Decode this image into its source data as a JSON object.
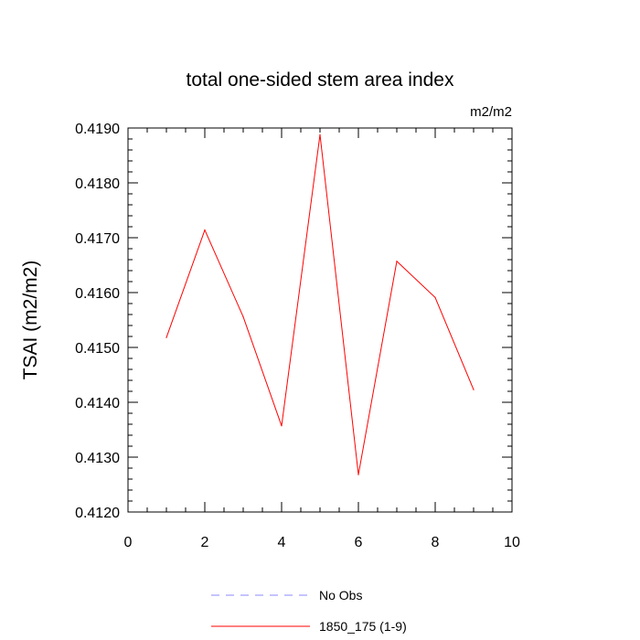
{
  "chart_data": {
    "type": "line",
    "title": "total one-sided stem area index",
    "units": "m2/m2",
    "xlabel": "",
    "ylabel": "TSAI  (m2/m2)",
    "xlim": [
      0,
      10
    ],
    "ylim": [
      0.412,
      0.419
    ],
    "x_ticks": [
      0,
      2,
      4,
      6,
      8,
      10
    ],
    "x_tick_labels": [
      "0",
      "2",
      "4",
      "6",
      "8",
      "10"
    ],
    "y_ticks": [
      0.412,
      0.413,
      0.414,
      0.415,
      0.416,
      0.417,
      0.418,
      0.419
    ],
    "y_tick_labels": [
      "0.4120",
      "0.4130",
      "0.4140",
      "0.4150",
      "0.4160",
      "0.4170",
      "0.4180",
      "0.4190"
    ],
    "grid": false,
    "legend_position": "bottom-center",
    "series": [
      {
        "name": "No Obs",
        "color": "#8888ff",
        "dash": "dashed",
        "x": [],
        "y": []
      },
      {
        "name": "1850_175 (1-9)",
        "color": "#ff0000",
        "dash": "solid",
        "x": [
          1,
          2,
          3,
          4,
          5,
          6,
          7,
          8,
          9
        ],
        "y": [
          0.41518,
          0.41714,
          0.41556,
          0.41357,
          0.41888,
          0.41268,
          0.41657,
          0.41591,
          0.41423
        ]
      }
    ]
  }
}
